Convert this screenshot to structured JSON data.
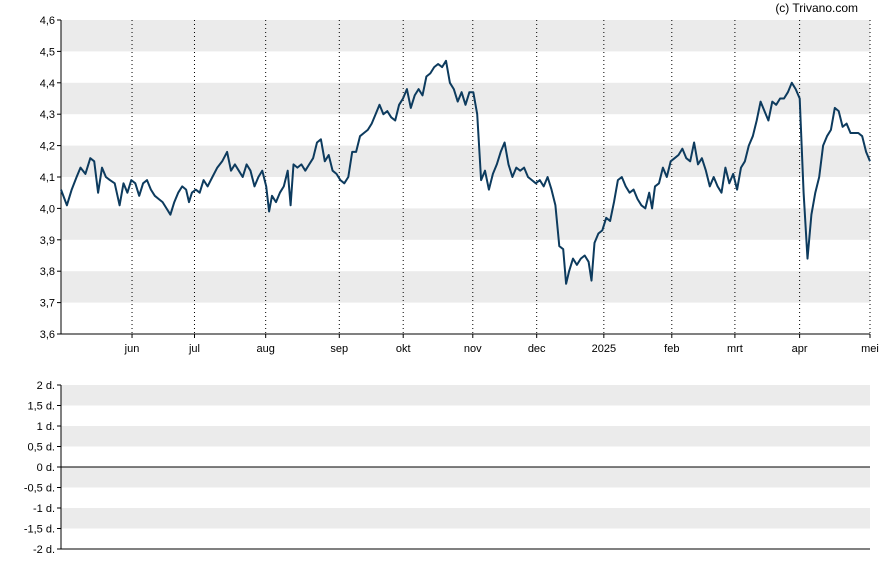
{
  "copyright": "(c) Trivano.com",
  "colors": {
    "line": "#0d3b5e",
    "band": "#ebebeb",
    "axis": "#000000",
    "gridline": "#000000"
  },
  "chart_data": [
    {
      "type": "line",
      "title": "",
      "xlabel": "",
      "ylabel": "",
      "ylim": [
        3.6,
        4.6
      ],
      "y_ticks": [
        "3,6",
        "3,7",
        "3,8",
        "3,9",
        "4,0",
        "4,1",
        "4,2",
        "4,3",
        "4,4",
        "4,5",
        "4,6"
      ],
      "x_ticks": [
        "jun",
        "jul",
        "aug",
        "sep",
        "okt",
        "nov",
        "dec",
        "2025",
        "feb",
        "mrt",
        "apr",
        "mei"
      ],
      "grid": "alternating horizontal bands, dotted vertical month lines",
      "legend": "none",
      "series": [
        {
          "name": "",
          "x_index_range": [
            0,
            1
          ],
          "points": [
            [
              0.0,
              4.06
            ],
            [
              0.006,
              4.01
            ],
            [
              0.011,
              4.06
            ],
            [
              0.016,
              4.1
            ],
            [
              0.02,
              4.13
            ],
            [
              0.025,
              4.11
            ],
            [
              0.03,
              4.16
            ],
            [
              0.034,
              4.15
            ],
            [
              0.038,
              4.05
            ],
            [
              0.042,
              4.13
            ],
            [
              0.046,
              4.1
            ],
            [
              0.05,
              4.09
            ],
            [
              0.055,
              4.08
            ],
            [
              0.06,
              4.01
            ],
            [
              0.064,
              4.08
            ],
            [
              0.068,
              4.05
            ],
            [
              0.072,
              4.09
            ],
            [
              0.076,
              4.08
            ],
            [
              0.08,
              4.04
            ],
            [
              0.084,
              4.08
            ],
            [
              0.088,
              4.09
            ],
            [
              0.092,
              4.06
            ],
            [
              0.096,
              4.04
            ],
            [
              0.1,
              4.03
            ],
            [
              0.104,
              4.02
            ],
            [
              0.108,
              4.0
            ],
            [
              0.112,
              3.98
            ],
            [
              0.116,
              4.02
            ],
            [
              0.12,
              4.05
            ],
            [
              0.124,
              4.07
            ],
            [
              0.128,
              4.06
            ],
            [
              0.131,
              4.02
            ],
            [
              0.134,
              4.05
            ],
            [
              0.138,
              4.06
            ],
            [
              0.142,
              4.05
            ],
            [
              0.146,
              4.09
            ],
            [
              0.15,
              4.07
            ],
            [
              0.155,
              4.1
            ],
            [
              0.16,
              4.13
            ],
            [
              0.165,
              4.15
            ],
            [
              0.17,
              4.18
            ],
            [
              0.174,
              4.12
            ],
            [
              0.178,
              4.14
            ],
            [
              0.182,
              4.12
            ],
            [
              0.186,
              4.1
            ],
            [
              0.19,
              4.14
            ],
            [
              0.194,
              4.12
            ],
            [
              0.198,
              4.07
            ],
            [
              0.202,
              4.1
            ],
            [
              0.206,
              4.12
            ],
            [
              0.21,
              4.07
            ],
            [
              0.213,
              3.99
            ],
            [
              0.216,
              4.04
            ],
            [
              0.22,
              4.02
            ],
            [
              0.224,
              4.05
            ],
            [
              0.228,
              4.07
            ],
            [
              0.232,
              4.12
            ],
            [
              0.235,
              4.01
            ],
            [
              0.238,
              4.14
            ],
            [
              0.242,
              4.13
            ],
            [
              0.246,
              4.14
            ],
            [
              0.25,
              4.12
            ],
            [
              0.254,
              4.14
            ],
            [
              0.258,
              4.16
            ],
            [
              0.262,
              4.21
            ],
            [
              0.266,
              4.22
            ],
            [
              0.27,
              4.15
            ],
            [
              0.274,
              4.17
            ],
            [
              0.278,
              4.12
            ],
            [
              0.282,
              4.11
            ],
            [
              0.286,
              4.09
            ],
            [
              0.29,
              4.08
            ],
            [
              0.294,
              4.1
            ],
            [
              0.298,
              4.18
            ],
            [
              0.302,
              4.18
            ],
            [
              0.306,
              4.23
            ],
            [
              0.31,
              4.24
            ],
            [
              0.314,
              4.25
            ],
            [
              0.318,
              4.27
            ],
            [
              0.322,
              4.3
            ],
            [
              0.326,
              4.33
            ],
            [
              0.33,
              4.3
            ],
            [
              0.334,
              4.31
            ],
            [
              0.338,
              4.29
            ],
            [
              0.342,
              4.28
            ],
            [
              0.346,
              4.33
            ],
            [
              0.35,
              4.35
            ],
            [
              0.354,
              4.38
            ],
            [
              0.358,
              4.32
            ],
            [
              0.362,
              4.36
            ],
            [
              0.366,
              4.38
            ],
            [
              0.37,
              4.36
            ],
            [
              0.374,
              4.42
            ],
            [
              0.378,
              4.43
            ],
            [
              0.382,
              4.45
            ],
            [
              0.386,
              4.46
            ],
            [
              0.39,
              4.45
            ],
            [
              0.394,
              4.47
            ],
            [
              0.398,
              4.4
            ],
            [
              0.402,
              4.38
            ],
            [
              0.406,
              4.34
            ],
            [
              0.41,
              4.37
            ],
            [
              0.414,
              4.33
            ],
            [
              0.418,
              4.37
            ],
            [
              0.422,
              4.37
            ],
            [
              0.426,
              4.3
            ],
            [
              0.43,
              4.09
            ],
            [
              0.434,
              4.12
            ],
            [
              0.438,
              4.06
            ],
            [
              0.442,
              4.11
            ],
            [
              0.446,
              4.14
            ],
            [
              0.45,
              4.18
            ],
            [
              0.454,
              4.21
            ],
            [
              0.458,
              4.14
            ],
            [
              0.462,
              4.1
            ],
            [
              0.466,
              4.13
            ],
            [
              0.47,
              4.12
            ],
            [
              0.474,
              4.13
            ],
            [
              0.478,
              4.1
            ],
            [
              0.482,
              4.09
            ],
            [
              0.486,
              4.08
            ],
            [
              0.49,
              4.09
            ],
            [
              0.494,
              4.07
            ],
            [
              0.498,
              4.1
            ],
            [
              0.502,
              4.06
            ],
            [
              0.506,
              4.01
            ],
            [
              0.51,
              3.88
            ],
            [
              0.514,
              3.87
            ],
            [
              0.517,
              3.76
            ],
            [
              0.52,
              3.8
            ],
            [
              0.524,
              3.84
            ],
            [
              0.528,
              3.82
            ],
            [
              0.532,
              3.84
            ],
            [
              0.536,
              3.85
            ],
            [
              0.54,
              3.83
            ],
            [
              0.543,
              3.77
            ],
            [
              0.546,
              3.89
            ],
            [
              0.55,
              3.92
            ],
            [
              0.554,
              3.93
            ],
            [
              0.558,
              3.97
            ],
            [
              0.562,
              3.96
            ],
            [
              0.566,
              4.02
            ],
            [
              0.57,
              4.09
            ],
            [
              0.574,
              4.1
            ],
            [
              0.578,
              4.07
            ],
            [
              0.582,
              4.05
            ],
            [
              0.586,
              4.06
            ],
            [
              0.59,
              4.03
            ],
            [
              0.594,
              4.01
            ],
            [
              0.598,
              4.0
            ],
            [
              0.602,
              4.05
            ],
            [
              0.605,
              4.0
            ],
            [
              0.608,
              4.07
            ],
            [
              0.612,
              4.08
            ],
            [
              0.616,
              4.13
            ],
            [
              0.62,
              4.1
            ],
            [
              0.624,
              4.15
            ],
            [
              0.628,
              4.16
            ],
            [
              0.632,
              4.17
            ],
            [
              0.636,
              4.19
            ],
            [
              0.64,
              4.16
            ],
            [
              0.644,
              4.15
            ],
            [
              0.648,
              4.21
            ],
            [
              0.652,
              4.14
            ],
            [
              0.656,
              4.16
            ],
            [
              0.66,
              4.12
            ],
            [
              0.664,
              4.07
            ],
            [
              0.668,
              4.1
            ],
            [
              0.672,
              4.07
            ],
            [
              0.676,
              4.05
            ],
            [
              0.68,
              4.13
            ],
            [
              0.684,
              4.08
            ],
            [
              0.688,
              4.11
            ],
            [
              0.692,
              4.06
            ],
            [
              0.696,
              4.13
            ],
            [
              0.7,
              4.15
            ],
            [
              0.704,
              4.2
            ],
            [
              0.708,
              4.23
            ],
            [
              0.712,
              4.28
            ],
            [
              0.716,
              4.34
            ],
            [
              0.72,
              4.31
            ],
            [
              0.724,
              4.28
            ],
            [
              0.728,
              4.34
            ],
            [
              0.732,
              4.33
            ],
            [
              0.736,
              4.35
            ],
            [
              0.74,
              4.35
            ],
            [
              0.744,
              4.37
            ],
            [
              0.748,
              4.4
            ],
            [
              0.752,
              4.38
            ],
            [
              0.756,
              4.35
            ],
            [
              0.76,
              4.05
            ],
            [
              0.764,
              3.84
            ],
            [
              0.768,
              3.98
            ],
            [
              0.772,
              4.05
            ],
            [
              0.776,
              4.1
            ],
            [
              0.78,
              4.2
            ],
            [
              0.784,
              4.23
            ],
            [
              0.788,
              4.25
            ],
            [
              0.792,
              4.32
            ],
            [
              0.796,
              4.31
            ],
            [
              0.8,
              4.26
            ],
            [
              0.804,
              4.27
            ],
            [
              0.808,
              4.24
            ],
            [
              0.812,
              4.24
            ],
            [
              0.816,
              4.24
            ],
            [
              0.82,
              4.23
            ],
            [
              0.824,
              4.18
            ],
            [
              0.828,
              4.15
            ]
          ]
        }
      ]
    },
    {
      "type": "bar",
      "title": "",
      "ylim": [
        -2,
        2
      ],
      "y_ticks": [
        "2 d.",
        "1,5 d.",
        "1 d.",
        "0,5 d.",
        "0 d.",
        "-0,5 d.",
        "-1 d.",
        "-1,5 d.",
        "-2 d."
      ],
      "grid": "alternating horizontal bands",
      "legend": "none",
      "values": []
    }
  ]
}
